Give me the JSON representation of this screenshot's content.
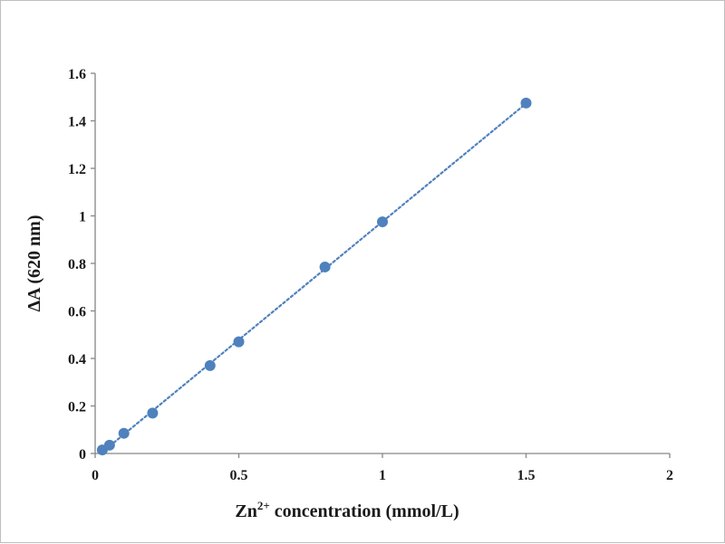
{
  "chart_data": {
    "type": "scatter",
    "title": "",
    "xlabel_base": "Zn",
    "xlabel_sup": "2+",
    "xlabel_rest": " concentration (mmol/L)",
    "ylabel": "ΔA (620 nm)",
    "xlim": [
      0,
      2
    ],
    "ylim": [
      0,
      1.6
    ],
    "x_ticks": [
      "0",
      "0.5",
      "1",
      "1.5",
      "2"
    ],
    "y_ticks": [
      "0",
      "0.2",
      "0.4",
      "0.6",
      "0.8",
      "1",
      "1.2",
      "1.4",
      "1.6"
    ],
    "grid": false,
    "legend": "none",
    "trendline": "linear (dotted)",
    "series": [
      {
        "x": [
          0.025,
          0.05,
          0.1,
          0.2,
          0.4,
          0.5,
          0.8,
          1.0,
          1.5
        ],
        "y": [
          0.015,
          0.035,
          0.085,
          0.17,
          0.37,
          0.47,
          0.785,
          0.975,
          1.475
        ]
      }
    ],
    "marker_color": "#4f81bd",
    "axis_color": "#868686"
  }
}
